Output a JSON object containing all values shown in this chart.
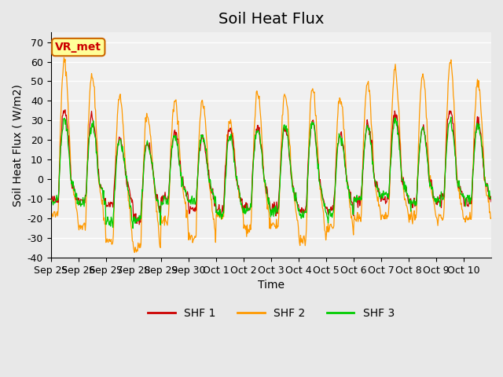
{
  "title": "Soil Heat Flux",
  "ylabel": "Soil Heat Flux ( W/m2)",
  "xlabel": "Time",
  "ylim": [
    -40,
    75
  ],
  "yticks": [
    -40,
    -30,
    -20,
    -10,
    0,
    10,
    20,
    30,
    40,
    50,
    60,
    70
  ],
  "xtick_labels": [
    "Sep 25",
    "Sep 26",
    "Sep 27",
    "Sep 28",
    "Sep 29",
    "Sep 30",
    "Oct 1",
    "Oct 2",
    "Oct 3",
    "Oct 4",
    "Oct 5",
    "Oct 6",
    "Oct 7",
    "Oct 8",
    "Oct 9",
    "Oct 10"
  ],
  "legend_labels": [
    "SHF 1",
    "SHF 2",
    "SHF 3"
  ],
  "legend_colors": [
    "#cc0000",
    "#ff9900",
    "#00cc00"
  ],
  "annotation_text": "VR_met",
  "annotation_color": "#cc0000",
  "annotation_bg": "#ffff99",
  "annotation_border": "#cc6600",
  "shf1_color": "#cc0000",
  "shf2_color": "#ff9900",
  "shf3_color": "#00cc00",
  "background_color": "#e8e8e8",
  "plot_bg_color": "#f0f0f0",
  "grid_color": "#ffffff",
  "title_fontsize": 14,
  "axis_fontsize": 10,
  "tick_fontsize": 9,
  "n_days": 16,
  "points_per_day": 48
}
